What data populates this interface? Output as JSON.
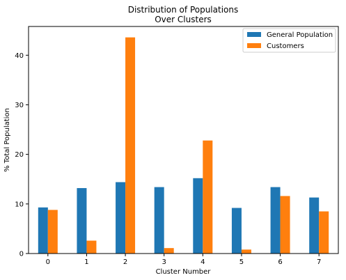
{
  "chart_data": {
    "type": "bar",
    "title_lines": [
      "Distribution of Populations",
      "Over Clusters"
    ],
    "xlabel": "Cluster Number",
    "ylabel": "% Total Population",
    "categories": [
      "0",
      "1",
      "2",
      "3",
      "4",
      "5",
      "6",
      "7"
    ],
    "series": [
      {
        "name": "General Population",
        "color": "#1f77b4",
        "values": [
          9.3,
          13.2,
          14.4,
          13.4,
          15.2,
          9.2,
          13.4,
          11.3
        ]
      },
      {
        "name": "Customers",
        "color": "#ff7f0e",
        "values": [
          8.8,
          2.6,
          43.6,
          1.1,
          22.8,
          0.8,
          11.6,
          8.5
        ]
      }
    ],
    "ylim": [
      0,
      45.8
    ],
    "yticks": [
      0,
      10,
      20,
      30,
      40
    ],
    "grid": false,
    "legend_position": "top-right"
  }
}
